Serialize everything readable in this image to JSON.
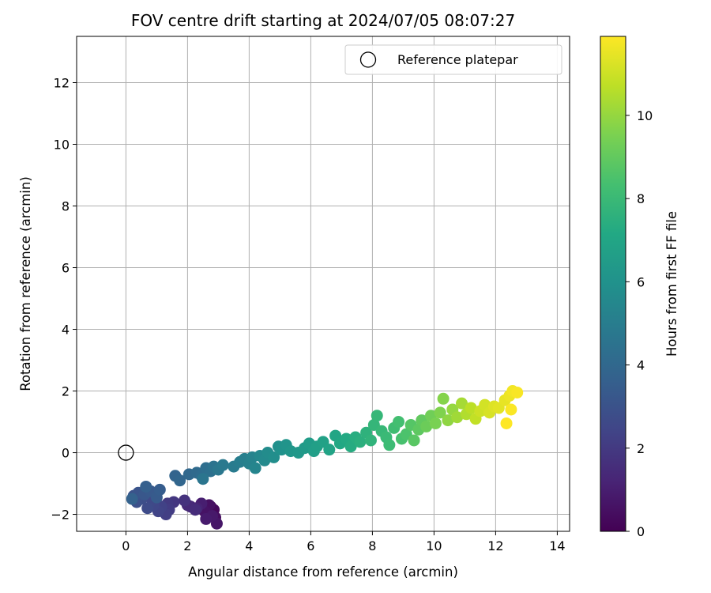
{
  "chart_data": {
    "type": "scatter",
    "title": "FOV centre drift starting at 2024/07/05 08:07:27",
    "xlabel": "Angular distance from reference (arcmin)",
    "ylabel": "Rotation from reference (arcmin)",
    "xlim": [
      -1.6,
      14.4
    ],
    "ylim": [
      -2.55,
      13.5
    ],
    "xticks": [
      0,
      2,
      4,
      6,
      8,
      10,
      12,
      14
    ],
    "yticks": [
      -2,
      0,
      2,
      4,
      6,
      8,
      10,
      12
    ],
    "grid": true,
    "colorbar": {
      "label": "Hours from first FF file",
      "colormap": "viridis",
      "range": [
        0,
        11.9
      ],
      "ticks": [
        0,
        2,
        4,
        6,
        8,
        10
      ]
    },
    "legend": {
      "position": "top-right",
      "entries": [
        "Reference platepar"
      ]
    },
    "reference_point": {
      "x": 0,
      "y": 0,
      "marker": "open-circle"
    },
    "series": [
      {
        "color_by": "hours",
        "points": [
          {
            "x": 2.75,
            "y": -1.75,
            "c": 0.1
          },
          {
            "x": 2.85,
            "y": -1.85,
            "c": 0.2
          },
          {
            "x": 2.65,
            "y": -2.0,
            "c": 0.3
          },
          {
            "x": 2.9,
            "y": -2.1,
            "c": 0.4
          },
          {
            "x": 2.7,
            "y": -1.7,
            "c": 0.5
          },
          {
            "x": 2.55,
            "y": -1.9,
            "c": 0.6
          },
          {
            "x": 2.95,
            "y": -2.3,
            "c": 0.7
          },
          {
            "x": 2.8,
            "y": -2.05,
            "c": 0.8
          },
          {
            "x": 2.6,
            "y": -2.15,
            "c": 0.9
          },
          {
            "x": 2.45,
            "y": -1.65,
            "c": 1.0
          },
          {
            "x": 2.3,
            "y": -1.8,
            "c": 1.2
          },
          {
            "x": 2.1,
            "y": -1.75,
            "c": 1.3
          },
          {
            "x": 2.0,
            "y": -1.7,
            "c": 1.4
          },
          {
            "x": 2.25,
            "y": -1.85,
            "c": 1.5
          },
          {
            "x": 1.9,
            "y": -1.55,
            "c": 1.7
          },
          {
            "x": 1.55,
            "y": -1.6,
            "c": 1.9
          },
          {
            "x": 1.35,
            "y": -1.65,
            "c": 2.0
          },
          {
            "x": 1.4,
            "y": -1.85,
            "c": 2.1
          },
          {
            "x": 1.3,
            "y": -2.0,
            "c": 2.2
          },
          {
            "x": 1.15,
            "y": -1.75,
            "c": 2.3
          },
          {
            "x": 1.05,
            "y": -1.9,
            "c": 2.4
          },
          {
            "x": 0.9,
            "y": -1.7,
            "c": 2.5
          },
          {
            "x": 0.85,
            "y": -1.55,
            "c": 2.6
          },
          {
            "x": 0.7,
            "y": -1.8,
            "c": 2.7
          },
          {
            "x": 0.5,
            "y": -1.5,
            "c": 2.8
          },
          {
            "x": 0.35,
            "y": -1.6,
            "c": 2.9
          },
          {
            "x": 0.25,
            "y": -1.4,
            "c": 3.0
          },
          {
            "x": 0.4,
            "y": -1.3,
            "c": 3.1
          },
          {
            "x": 0.6,
            "y": -1.35,
            "c": 3.2
          },
          {
            "x": 0.8,
            "y": -1.25,
            "c": 3.3
          },
          {
            "x": 1.0,
            "y": -1.45,
            "c": 3.4
          },
          {
            "x": 1.1,
            "y": -1.2,
            "c": 3.5
          },
          {
            "x": 0.65,
            "y": -1.1,
            "c": 3.6
          },
          {
            "x": 0.2,
            "y": -1.5,
            "c": 3.7
          },
          {
            "x": 1.6,
            "y": -0.75,
            "c": 3.8
          },
          {
            "x": 1.75,
            "y": -0.9,
            "c": 3.9
          },
          {
            "x": 2.05,
            "y": -0.7,
            "c": 4.0
          },
          {
            "x": 2.3,
            "y": -0.65,
            "c": 4.1
          },
          {
            "x": 2.45,
            "y": -0.75,
            "c": 4.2
          },
          {
            "x": 2.6,
            "y": -0.5,
            "c": 4.3
          },
          {
            "x": 2.75,
            "y": -0.6,
            "c": 4.4
          },
          {
            "x": 2.85,
            "y": -0.45,
            "c": 4.5
          },
          {
            "x": 2.5,
            "y": -0.85,
            "c": 4.6
          },
          {
            "x": 3.0,
            "y": -0.55,
            "c": 4.7
          },
          {
            "x": 3.15,
            "y": -0.4,
            "c": 4.8
          },
          {
            "x": 3.5,
            "y": -0.45,
            "c": 4.9
          },
          {
            "x": 3.7,
            "y": -0.3,
            "c": 5.0
          },
          {
            "x": 3.85,
            "y": -0.2,
            "c": 5.1
          },
          {
            "x": 4.0,
            "y": -0.35,
            "c": 5.2
          },
          {
            "x": 4.1,
            "y": -0.15,
            "c": 5.3
          },
          {
            "x": 4.2,
            "y": -0.5,
            "c": 5.4
          },
          {
            "x": 4.35,
            "y": -0.1,
            "c": 5.5
          },
          {
            "x": 4.5,
            "y": -0.25,
            "c": 5.6
          },
          {
            "x": 4.6,
            "y": 0.0,
            "c": 5.7
          },
          {
            "x": 4.8,
            "y": -0.15,
            "c": 5.8
          },
          {
            "x": 4.95,
            "y": 0.2,
            "c": 5.9
          },
          {
            "x": 5.05,
            "y": 0.1,
            "c": 6.0
          },
          {
            "x": 5.2,
            "y": 0.25,
            "c": 6.1
          },
          {
            "x": 5.35,
            "y": 0.05,
            "c": 6.2
          },
          {
            "x": 5.6,
            "y": 0.0,
            "c": 6.3
          },
          {
            "x": 5.8,
            "y": 0.15,
            "c": 6.4
          },
          {
            "x": 5.95,
            "y": 0.3,
            "c": 6.5
          },
          {
            "x": 6.1,
            "y": 0.05,
            "c": 6.6
          },
          {
            "x": 6.2,
            "y": 0.2,
            "c": 6.7
          },
          {
            "x": 6.4,
            "y": 0.35,
            "c": 6.8
          },
          {
            "x": 6.6,
            "y": 0.1,
            "c": 6.9
          },
          {
            "x": 6.8,
            "y": 0.55,
            "c": 7.0
          },
          {
            "x": 6.95,
            "y": 0.3,
            "c": 7.1
          },
          {
            "x": 7.15,
            "y": 0.45,
            "c": 7.2
          },
          {
            "x": 7.3,
            "y": 0.2,
            "c": 7.3
          },
          {
            "x": 7.45,
            "y": 0.5,
            "c": 7.4
          },
          {
            "x": 7.6,
            "y": 0.35,
            "c": 7.5
          },
          {
            "x": 7.8,
            "y": 0.65,
            "c": 7.6
          },
          {
            "x": 7.95,
            "y": 0.4,
            "c": 7.7
          },
          {
            "x": 8.05,
            "y": 0.9,
            "c": 7.8
          },
          {
            "x": 8.15,
            "y": 1.2,
            "c": 7.85
          },
          {
            "x": 8.3,
            "y": 0.7,
            "c": 7.9
          },
          {
            "x": 8.45,
            "y": 0.5,
            "c": 8.0
          },
          {
            "x": 8.55,
            "y": 0.25,
            "c": 8.1
          },
          {
            "x": 8.7,
            "y": 0.8,
            "c": 8.2
          },
          {
            "x": 8.85,
            "y": 1.0,
            "c": 8.3
          },
          {
            "x": 8.95,
            "y": 0.45,
            "c": 8.4
          },
          {
            "x": 9.1,
            "y": 0.6,
            "c": 8.5
          },
          {
            "x": 9.25,
            "y": 0.9,
            "c": 8.7
          },
          {
            "x": 9.35,
            "y": 0.4,
            "c": 8.8
          },
          {
            "x": 9.5,
            "y": 0.75,
            "c": 8.9
          },
          {
            "x": 9.6,
            "y": 1.05,
            "c": 9.0
          },
          {
            "x": 9.75,
            "y": 0.85,
            "c": 9.2
          },
          {
            "x": 9.9,
            "y": 1.2,
            "c": 9.3
          },
          {
            "x": 10.05,
            "y": 0.95,
            "c": 9.5
          },
          {
            "x": 10.2,
            "y": 1.3,
            "c": 9.6
          },
          {
            "x": 10.3,
            "y": 1.75,
            "c": 9.7
          },
          {
            "x": 10.45,
            "y": 1.05,
            "c": 9.9
          },
          {
            "x": 10.6,
            "y": 1.4,
            "c": 10.0
          },
          {
            "x": 10.75,
            "y": 1.15,
            "c": 10.2
          },
          {
            "x": 10.9,
            "y": 1.6,
            "c": 10.3
          },
          {
            "x": 11.05,
            "y": 1.25,
            "c": 10.5
          },
          {
            "x": 11.2,
            "y": 1.45,
            "c": 10.7
          },
          {
            "x": 11.35,
            "y": 1.1,
            "c": 10.8
          },
          {
            "x": 11.5,
            "y": 1.35,
            "c": 11.0
          },
          {
            "x": 11.65,
            "y": 1.55,
            "c": 11.1
          },
          {
            "x": 11.8,
            "y": 1.3,
            "c": 11.2
          },
          {
            "x": 11.95,
            "y": 1.5,
            "c": 11.3
          },
          {
            "x": 12.1,
            "y": 1.45,
            "c": 11.4
          },
          {
            "x": 12.3,
            "y": 1.7,
            "c": 11.5
          },
          {
            "x": 12.45,
            "y": 1.85,
            "c": 11.6
          },
          {
            "x": 12.55,
            "y": 2.0,
            "c": 11.7
          },
          {
            "x": 12.7,
            "y": 1.95,
            "c": 11.8
          },
          {
            "x": 12.5,
            "y": 1.4,
            "c": 11.85
          },
          {
            "x": 12.35,
            "y": 0.95,
            "c": 11.9
          }
        ]
      }
    ]
  }
}
